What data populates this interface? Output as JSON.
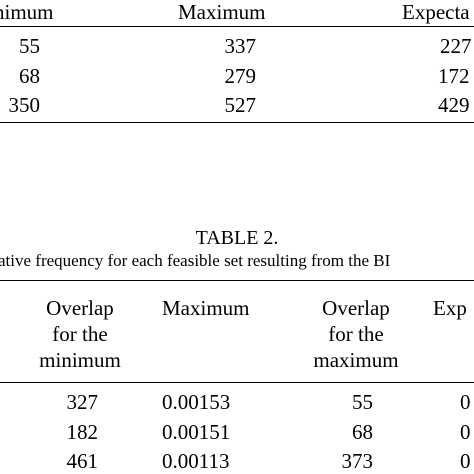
{
  "table1": {
    "headers": [
      "nimum",
      "Maximum",
      "Expecta"
    ],
    "rows": [
      [
        "55",
        "337",
        "227"
      ],
      [
        "68",
        "279",
        "172"
      ],
      [
        "350",
        "527",
        "429"
      ]
    ]
  },
  "table2": {
    "label": "TABLE 2.",
    "caption": "ative frequency for each feasible set resulting from the BI",
    "headers": [
      [
        "Overlap",
        "for the",
        "minimum"
      ],
      [
        "Maximum"
      ],
      [
        "Overlap",
        "for the",
        "maximum"
      ],
      [
        "Exp"
      ]
    ],
    "rows": [
      [
        "327",
        "0.00153",
        "55",
        "0"
      ],
      [
        "182",
        "0.00151",
        "68",
        "0"
      ],
      [
        "461",
        "0.00113",
        "373",
        "0"
      ]
    ]
  }
}
